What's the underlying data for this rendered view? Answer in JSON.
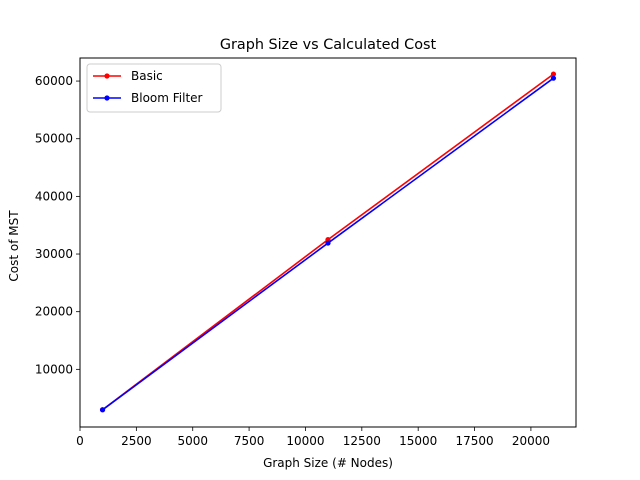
{
  "chart_data": {
    "type": "line",
    "title": "Graph Size vs Calculated Cost",
    "xlabel": "Graph Size (# Nodes)",
    "ylabel": "Cost of MST",
    "x": [
      1000,
      11000,
      21000
    ],
    "series": [
      {
        "name": "Basic",
        "color": "#ff0000",
        "values": [
          3000,
          32500,
          61200
        ]
      },
      {
        "name": "Bloom Filter",
        "color": "#0000ff",
        "values": [
          2980,
          31900,
          60500
        ]
      }
    ],
    "xlim": [
      0,
      22000
    ],
    "ylim": [
      0,
      64000
    ],
    "xticks": [
      0,
      2500,
      5000,
      7500,
      10000,
      12500,
      15000,
      17500,
      20000
    ],
    "yticks": [
      10000,
      20000,
      30000,
      40000,
      50000,
      60000
    ],
    "grid": false,
    "legend_position": "upper-left",
    "marker": "dot"
  }
}
